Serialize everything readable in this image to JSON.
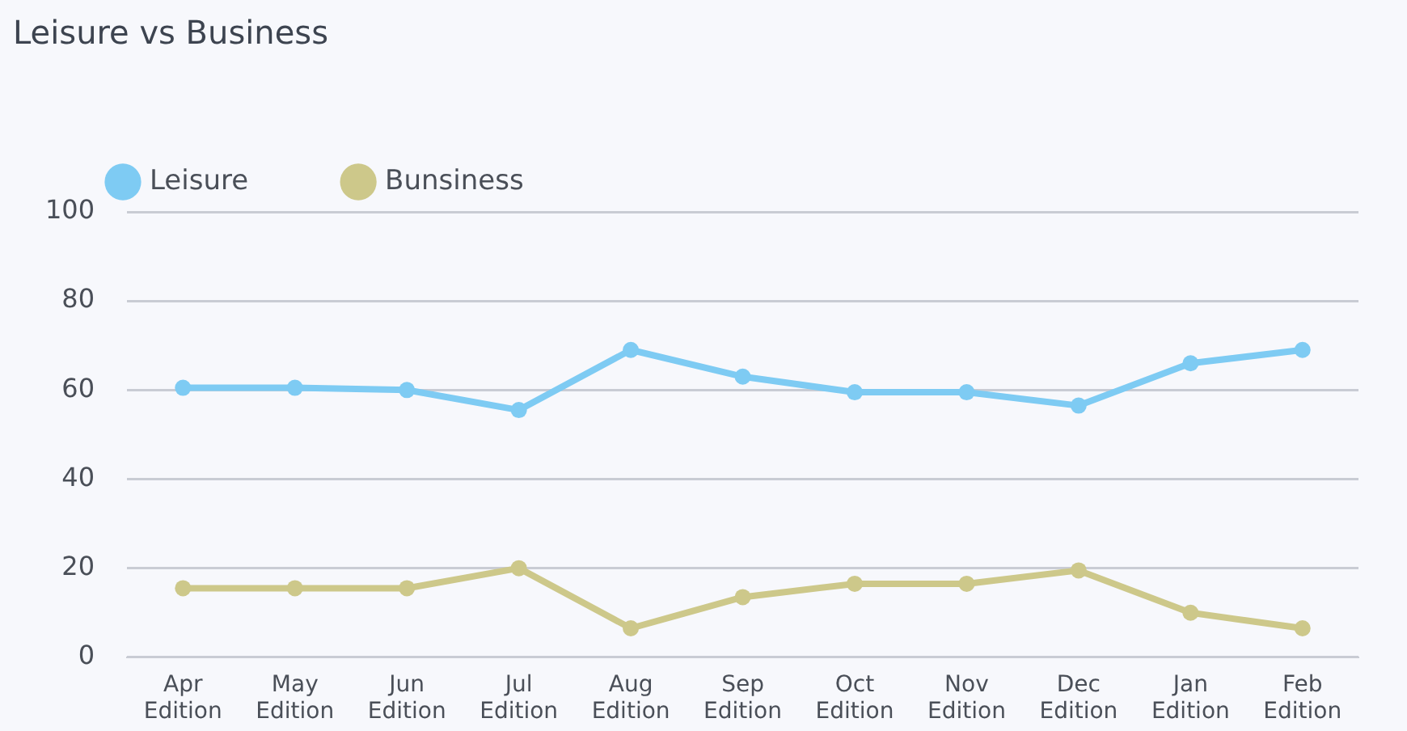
{
  "chart_data": {
    "type": "line",
    "title": "Leisure vs Business",
    "categories": [
      "Apr Edition",
      "May Edition",
      "Jun Edition",
      "Jul Edition",
      "Aug Edition",
      "Sep Edition",
      "Oct Edition",
      "Nov Edition",
      "Dec Edition",
      "Jan Edition",
      "Feb Edition"
    ],
    "series": [
      {
        "name": "Leisure",
        "color": "#7ecbf3",
        "values": [
          60.5,
          60.5,
          60,
          55.5,
          69,
          63,
          59.5,
          59.5,
          56.5,
          66,
          69
        ]
      },
      {
        "name": "Bunsiness",
        "color": "#cdc88a",
        "values": [
          15.5,
          15.5,
          15.5,
          20,
          6.5,
          13.5,
          16.5,
          16.5,
          19.5,
          10,
          6.5
        ]
      }
    ],
    "ylim": [
      0,
      100
    ],
    "yticks": [
      0,
      20,
      40,
      60,
      80,
      100
    ],
    "grid": "y",
    "legend": "top left",
    "marker": "circle",
    "line_style": "solid"
  }
}
